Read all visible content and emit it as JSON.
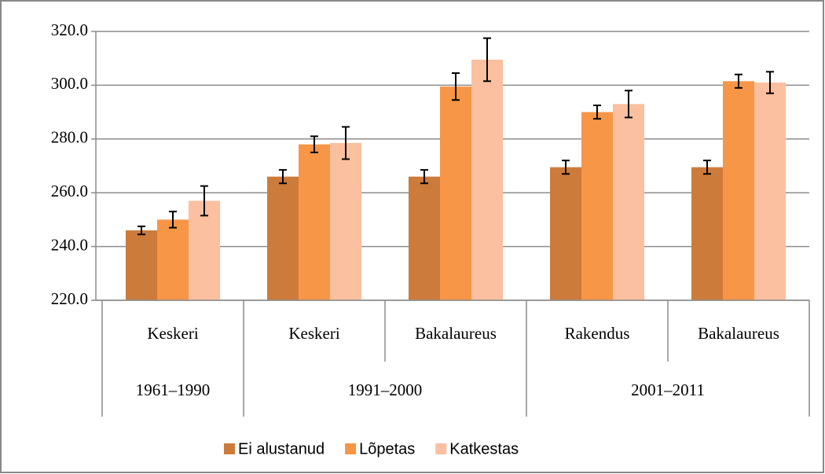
{
  "chart_data": {
    "type": "bar",
    "category_groups": [
      {
        "name": "1961–1990",
        "categories": [
          "Keskeri"
        ]
      },
      {
        "name": "1991–2000",
        "categories": [
          "Keskeri",
          "Bakalaureus"
        ]
      },
      {
        "name": "2001–2011",
        "categories": [
          "Rakendus",
          "Bakalaureus"
        ]
      }
    ],
    "series": [
      {
        "name": "Ei alustanud",
        "color": "#cd7b3a",
        "values": [
          246,
          266,
          266,
          269.5,
          269.5
        ],
        "errors": [
          1.5,
          2.5,
          2.5,
          2.5,
          2.5
        ]
      },
      {
        "name": "Lõpetas",
        "color": "#f79646",
        "values": [
          250,
          278,
          299.5,
          290,
          301.5
        ],
        "errors": [
          3,
          3,
          5,
          2.5,
          2.5
        ]
      },
      {
        "name": "Katkestas",
        "color": "#fac09f",
        "values": [
          257,
          278.5,
          309.5,
          293,
          301
        ],
        "errors": [
          5.5,
          6,
          8,
          5,
          4
        ]
      }
    ],
    "ylim": [
      220,
      320
    ],
    "yticks": [
      {
        "value": 220,
        "label": "220.0"
      },
      {
        "value": 240,
        "label": "240.0"
      },
      {
        "value": 260,
        "label": "260.0"
      },
      {
        "value": 280,
        "label": "280.0"
      },
      {
        "value": 300,
        "label": "300.0"
      },
      {
        "value": 320,
        "label": "320.0"
      }
    ],
    "grid": true,
    "legend": "bottom"
  }
}
